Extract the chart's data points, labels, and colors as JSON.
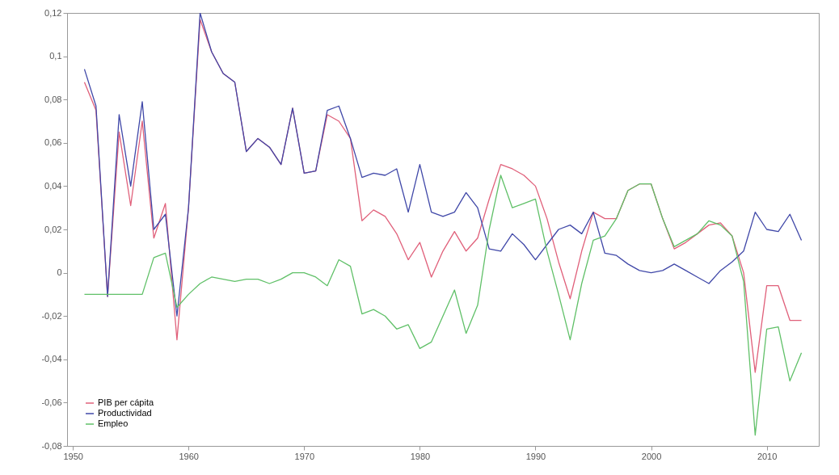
{
  "chart_data": {
    "type": "line",
    "x": [
      1951,
      1952,
      1953,
      1954,
      1955,
      1956,
      1957,
      1958,
      1959,
      1960,
      1961,
      1962,
      1963,
      1964,
      1965,
      1966,
      1967,
      1968,
      1969,
      1970,
      1971,
      1972,
      1973,
      1974,
      1975,
      1976,
      1977,
      1978,
      1979,
      1980,
      1981,
      1982,
      1983,
      1984,
      1985,
      1986,
      1987,
      1988,
      1989,
      1990,
      1991,
      1992,
      1993,
      1994,
      1995,
      1996,
      1997,
      1998,
      1999,
      2000,
      2001,
      2002,
      2003,
      2004,
      2005,
      2006,
      2007,
      2008,
      2009,
      2010,
      2011,
      2012,
      2013
    ],
    "series": [
      {
        "name": "PIB per cápita",
        "color": "#e0607a",
        "values": [
          0.088,
          0.075,
          -0.011,
          0.065,
          0.031,
          0.07,
          0.016,
          0.032,
          -0.031,
          0.03,
          0.117,
          0.102,
          0.092,
          0.088,
          0.056,
          0.062,
          0.058,
          0.05,
          0.076,
          0.046,
          0.047,
          0.073,
          0.07,
          0.062,
          0.024,
          0.029,
          0.026,
          0.018,
          0.006,
          0.014,
          -0.002,
          0.01,
          0.019,
          0.01,
          0.016,
          0.034,
          0.05,
          0.048,
          0.045,
          0.04,
          0.025,
          0.005,
          -0.012,
          0.01,
          0.028,
          0.025,
          0.025,
          0.038,
          0.041,
          0.041,
          0.025,
          0.011,
          0.014,
          0.018,
          0.022,
          0.023,
          0.017,
          0.0,
          -0.046,
          -0.006,
          -0.006,
          -0.022,
          -0.022
        ]
      },
      {
        "name": "Productividad",
        "color": "#4048a8",
        "values": [
          0.094,
          0.077,
          -0.011,
          0.073,
          0.04,
          0.079,
          0.02,
          0.027,
          -0.02,
          0.03,
          0.12,
          0.102,
          0.092,
          0.088,
          0.056,
          0.062,
          0.058,
          0.05,
          0.076,
          0.046,
          0.047,
          0.075,
          0.077,
          0.062,
          0.044,
          0.046,
          0.045,
          0.048,
          0.028,
          0.05,
          0.028,
          0.026,
          0.028,
          0.037,
          0.03,
          0.011,
          0.01,
          0.018,
          0.013,
          0.006,
          0.013,
          0.02,
          0.022,
          0.018,
          0.028,
          0.009,
          0.008,
          0.004,
          0.001,
          0.0,
          0.001,
          0.004,
          0.001,
          -0.002,
          -0.005,
          0.001,
          0.005,
          0.01,
          0.028,
          0.02,
          0.019,
          0.027,
          0.015
        ]
      },
      {
        "name": "Empleo",
        "color": "#60c068",
        "values": [
          -0.01,
          -0.01,
          -0.01,
          -0.01,
          -0.01,
          -0.01,
          0.007,
          0.009,
          -0.016,
          -0.01,
          -0.005,
          -0.002,
          -0.003,
          -0.004,
          -0.003,
          -0.003,
          -0.005,
          -0.003,
          0.0,
          0.0,
          -0.002,
          -0.006,
          0.006,
          0.003,
          -0.019,
          -0.017,
          -0.02,
          -0.026,
          -0.024,
          -0.035,
          -0.032,
          -0.02,
          -0.008,
          -0.028,
          -0.015,
          0.02,
          0.045,
          0.03,
          0.032,
          0.034,
          0.01,
          -0.01,
          -0.031,
          -0.005,
          0.015,
          0.017,
          0.025,
          0.038,
          0.041,
          0.041,
          0.025,
          0.012,
          0.015,
          0.018,
          0.024,
          0.022,
          0.017,
          -0.004,
          -0.075,
          -0.026,
          -0.025,
          -0.05,
          -0.037
        ]
      }
    ],
    "xlim": [
      1949.5,
      2014.5
    ],
    "xticks": [
      1950,
      1960,
      1970,
      1980,
      1990,
      2000,
      2010
    ],
    "ylim": [
      -0.08,
      0.12
    ],
    "yticks": [
      {
        "value": -0.08,
        "label": "-0,08"
      },
      {
        "value": -0.06,
        "label": "-0,06"
      },
      {
        "value": -0.04,
        "label": "-0,04"
      },
      {
        "value": -0.02,
        "label": "-0,02"
      },
      {
        "value": 0,
        "label": "0"
      },
      {
        "value": 0.02,
        "label": "0,02"
      },
      {
        "value": 0.04,
        "label": "0,04"
      },
      {
        "value": 0.06,
        "label": "0,06"
      },
      {
        "value": 0.08,
        "label": "0,08"
      },
      {
        "value": 0.1,
        "label": "0,1"
      },
      {
        "value": 0.12,
        "label": "0,12"
      }
    ],
    "grid": false,
    "legend": "bottom left",
    "marker": "none",
    "line_style": "solid"
  }
}
